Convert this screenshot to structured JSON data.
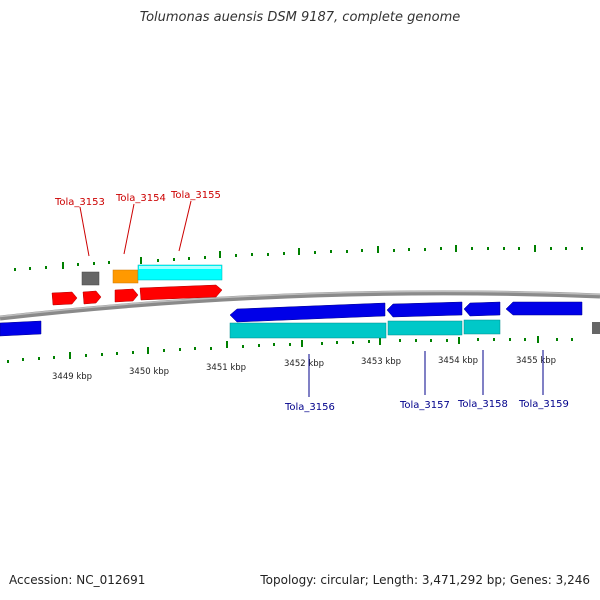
{
  "title": "Tolumonas auensis DSM 9187, complete genome",
  "footer": {
    "accession": "Accession: NC_012691",
    "summary": "Topology: circular; Length: 3,471,292 bp; Genes: 3,246"
  },
  "colors": {
    "forward_cds": "#ff0000",
    "reverse_cds": "#0000e8",
    "forward_rna": "#00ffff",
    "reverse_rna": "#00c8c8",
    "gene_gray": "#666666",
    "gene_orange": "#ff9900",
    "ticks": "#008000",
    "forward_label": "#cc0000",
    "reverse_label": "#00008b"
  },
  "scale_labels": [
    "3449 kbp",
    "3450 kbp",
    "3451 kbp",
    "3452 kbp",
    "3453 kbp",
    "3454 kbp",
    "3455 kbp"
  ],
  "gene_labels_forward": [
    "Tola_3153",
    "Tola_3154",
    "Tola_3155"
  ],
  "gene_labels_reverse": [
    "Tola_3156",
    "Tola_3157",
    "Tola_3158",
    "Tola_3159"
  ]
}
